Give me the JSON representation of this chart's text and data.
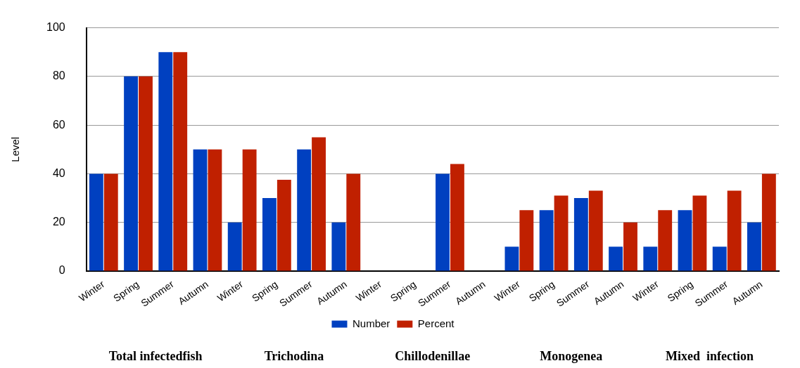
{
  "chart_data": {
    "type": "bar",
    "ylabel": "Level",
    "categories": [
      "Winter",
      "Spring",
      "Summer",
      "Autumn",
      "Winter",
      "Spring",
      "Summer",
      "Autumn",
      "Winter",
      "Spring",
      "Summer",
      "Autumn",
      "Winter",
      "Spring",
      "Summer",
      "Autumn",
      "Winter",
      "Spring",
      "Summer",
      "Autumn"
    ],
    "series": [
      {
        "name": "Number",
        "color": "#0040c0",
        "values": [
          40,
          80,
          90,
          50,
          20,
          30,
          50,
          20,
          null,
          null,
          40,
          null,
          10,
          25,
          30,
          10,
          10,
          25,
          10,
          20
        ]
      },
      {
        "name": "Percent",
        "color": "#c02000",
        "values": [
          40,
          80,
          90,
          50,
          50,
          37.5,
          55,
          40,
          null,
          null,
          44,
          null,
          25,
          31,
          33,
          20,
          25,
          31,
          33,
          40
        ]
      }
    ],
    "annotations": [
      "Total infectedfish",
      "Trichodina",
      "Chillodenillae",
      "Monogenea",
      "Mixed  infection"
    ],
    "ylim": [
      0,
      100
    ],
    "yticks": [
      0,
      20,
      40,
      60,
      80,
      100
    ],
    "grid": "y",
    "legend": "bottom"
  }
}
